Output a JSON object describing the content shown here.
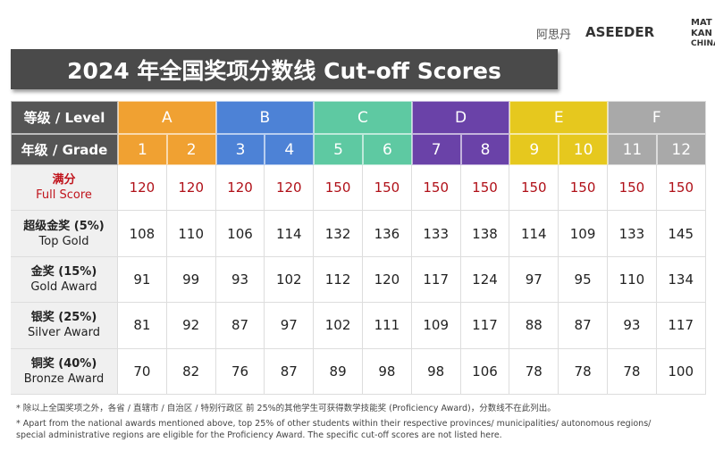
{
  "header": {
    "title": "2024 年全国奖项分数线 Cut-off Scores",
    "logos": [
      "阿思丹",
      "ASEEDER",
      "MAT",
      "KAN",
      "CHINA"
    ]
  },
  "table": {
    "level_label": "等级 / Level",
    "grade_label": "年级 / Grade",
    "levels": [
      {
        "name": "A",
        "color": "#f0a132"
      },
      {
        "name": "B",
        "color": "#4d82d6"
      },
      {
        "name": "C",
        "color": "#5ec9a2"
      },
      {
        "name": "D",
        "color": "#6a42a8"
      },
      {
        "name": "E",
        "color": "#e6c81e"
      },
      {
        "name": "F",
        "color": "#a9a9a9"
      }
    ],
    "grades": [
      1,
      2,
      3,
      4,
      5,
      6,
      7,
      8,
      9,
      10,
      11,
      12
    ],
    "rows": [
      {
        "label_cn": "满分",
        "label_en": "Full Score",
        "values": [
          120,
          120,
          120,
          120,
          150,
          150,
          150,
          150,
          150,
          150,
          150,
          150
        ]
      },
      {
        "label_cn": "超级金奖 (5%)",
        "label_en": "Top Gold",
        "values": [
          108,
          110,
          106,
          114,
          132,
          136,
          133,
          138,
          114,
          109,
          133,
          145
        ]
      },
      {
        "label_cn": "金奖 (15%)",
        "label_en": "Gold Award",
        "values": [
          91,
          99,
          93,
          102,
          112,
          120,
          117,
          124,
          97,
          95,
          110,
          134
        ]
      },
      {
        "label_cn": "银奖 (25%)",
        "label_en": "Silver Award",
        "values": [
          81,
          92,
          87,
          97,
          102,
          111,
          109,
          117,
          88,
          87,
          93,
          117
        ]
      },
      {
        "label_cn": "铜奖 (40%)",
        "label_en": "Bronze Award",
        "values": [
          70,
          82,
          76,
          87,
          89,
          98,
          98,
          106,
          78,
          78,
          78,
          100
        ]
      }
    ]
  },
  "footnotes": [
    "* 除以上全国奖项之外，各省 / 直辖市 / 自治区 / 特别行政区 前 25%的其他学生可获得数学技能奖 (Proficiency Award)，分数线不在此列出。",
    "* Apart from the national awards mentioned above, top 25% of other students within their respective provinces/ municipalities/ autonomous regions/ special administrative regions are eligible for the Proficiency Award. The specific cut-off scores are not listed here."
  ]
}
